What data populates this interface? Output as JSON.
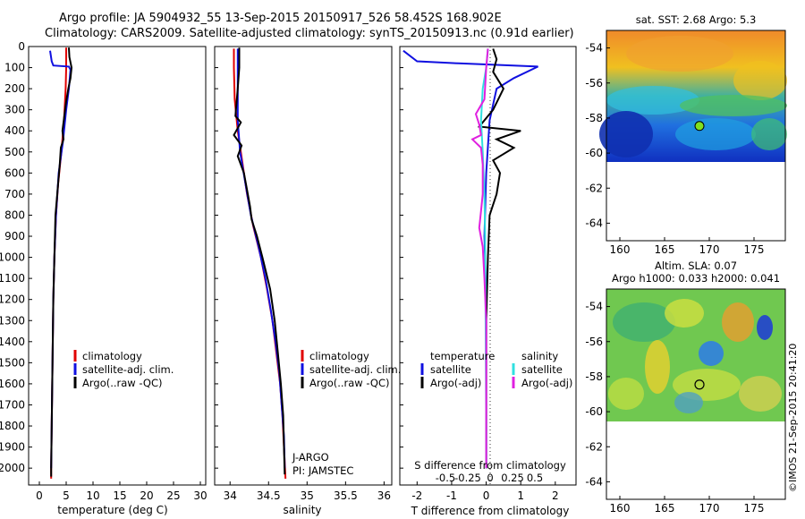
{
  "header": {
    "line1": "Argo profile: JA 5904932_55 13-Sep-2015 20150917_526 58.452S 168.902E",
    "line2": "Climatology: CARS2009. Satellite-adjusted climatology: synTS_20150913.nc (0.91d earlier)"
  },
  "side_stamp": "©IMOS 21-Sep-2015 20:41:20",
  "colors": {
    "climatology": "#e00000",
    "satellite": "#1010e0",
    "argo": "#000000",
    "cyan": "#30e0e0",
    "magenta": "#e020e0",
    "marker": "#80e020"
  },
  "chart_data": [
    {
      "type": "line",
      "id": "temperature",
      "xlabel": "temperature (deg C)",
      "ylabel": "",
      "xlim": [
        -2,
        31
      ],
      "ylim": [
        2080,
        0
      ],
      "xticks": [
        0,
        5,
        10,
        15,
        20,
        25,
        30
      ],
      "yticks": [
        0,
        100,
        200,
        300,
        400,
        500,
        600,
        700,
        800,
        900,
        1000,
        1100,
        1200,
        1300,
        1400,
        1500,
        1600,
        1700,
        1800,
        1900,
        2000
      ],
      "legend": [
        "climatology",
        "satellite-adj. clim.",
        "Argo(..raw -QC)"
      ],
      "series": [
        {
          "name": "climatology",
          "color": "#e00000",
          "points": [
            [
              5.0,
              5
            ],
            [
              5.0,
              100
            ],
            [
              4.9,
              200
            ],
            [
              4.6,
              350
            ],
            [
              4.1,
              500
            ],
            [
              3.5,
              650
            ],
            [
              3.1,
              800
            ],
            [
              2.8,
              1000
            ],
            [
              2.6,
              1200
            ],
            [
              2.5,
              1400
            ],
            [
              2.4,
              1600
            ],
            [
              2.3,
              1800
            ],
            [
              2.2,
              2000
            ],
            [
              2.2,
              2050
            ]
          ]
        },
        {
          "name": "satellite-adj. clim.",
          "color": "#1010e0",
          "points": [
            [
              2.0,
              20
            ],
            [
              2.3,
              70
            ],
            [
              2.6,
              90
            ],
            [
              5.5,
              95
            ],
            [
              5.8,
              110
            ],
            [
              5.5,
              200
            ],
            [
              5.0,
              300
            ],
            [
              4.4,
              450
            ],
            [
              3.6,
              600
            ],
            [
              3.1,
              800
            ],
            [
              2.8,
              1000
            ],
            [
              2.6,
              1200
            ],
            [
              2.5,
              1400
            ],
            [
              2.4,
              1600
            ],
            [
              2.3,
              1800
            ],
            [
              2.2,
              2000
            ]
          ]
        },
        {
          "name": "Argo(..raw -QC)",
          "color": "#000000",
          "points": [
            [
              5.5,
              5
            ],
            [
              5.6,
              50
            ],
            [
              6.0,
              100
            ],
            [
              5.8,
              150
            ],
            [
              5.4,
              200
            ],
            [
              5.0,
              260
            ],
            [
              4.6,
              340
            ],
            [
              4.3,
              400
            ],
            [
              4.5,
              440
            ],
            [
              4.0,
              480
            ],
            [
              3.8,
              560
            ],
            [
              3.4,
              680
            ],
            [
              3.0,
              800
            ],
            [
              2.8,
              1000
            ],
            [
              2.6,
              1200
            ],
            [
              2.5,
              1400
            ],
            [
              2.4,
              1600
            ],
            [
              2.3,
              1800
            ],
            [
              2.2,
              2000
            ],
            [
              2.2,
              2040
            ]
          ]
        }
      ]
    },
    {
      "type": "line",
      "id": "salinity",
      "xlabel": "salinity",
      "ylabel": "",
      "xlim": [
        33.8,
        36.1
      ],
      "ylim": [
        2080,
        0
      ],
      "xticks": [
        34,
        34.5,
        35,
        35.5,
        36
      ],
      "xticklabels": [
        "34",
        "34.5",
        "35",
        "35.5",
        "36"
      ],
      "legend": [
        "climatology",
        "satellite-adj. clim.",
        "Argo(..raw -QC)"
      ],
      "annotations": [
        "J-ARGO",
        "PI: JAMSTEC"
      ],
      "series": [
        {
          "name": "climatology",
          "color": "#e00000",
          "points": [
            [
              34.05,
              10
            ],
            [
              34.05,
              100
            ],
            [
              34.06,
              250
            ],
            [
              34.1,
              400
            ],
            [
              34.16,
              550
            ],
            [
              34.22,
              700
            ],
            [
              34.3,
              850
            ],
            [
              34.4,
              1000
            ],
            [
              34.48,
              1150
            ],
            [
              34.55,
              1300
            ],
            [
              34.6,
              1450
            ],
            [
              34.65,
              1600
            ],
            [
              34.68,
              1750
            ],
            [
              34.7,
              1900
            ],
            [
              34.72,
              2050
            ]
          ]
        },
        {
          "name": "satellite-adj. clim.",
          "color": "#1010e0",
          "points": [
            [
              34.1,
              10
            ],
            [
              34.1,
              200
            ],
            [
              34.1,
              350
            ],
            [
              34.13,
              500
            ],
            [
              34.2,
              650
            ],
            [
              34.27,
              800
            ],
            [
              34.37,
              950
            ],
            [
              34.46,
              1100
            ],
            [
              34.53,
              1250
            ],
            [
              34.59,
              1400
            ],
            [
              34.64,
              1550
            ],
            [
              34.67,
              1700
            ],
            [
              34.7,
              1850
            ],
            [
              34.71,
              2000
            ]
          ]
        },
        {
          "name": "Argo(..raw -QC)",
          "color": "#000000",
          "points": [
            [
              34.12,
              5
            ],
            [
              34.12,
              100
            ],
            [
              34.1,
              200
            ],
            [
              34.07,
              330
            ],
            [
              34.14,
              360
            ],
            [
              34.05,
              420
            ],
            [
              34.15,
              470
            ],
            [
              34.1,
              520
            ],
            [
              34.18,
              600
            ],
            [
              34.22,
              680
            ],
            [
              34.26,
              760
            ],
            [
              34.28,
              820
            ],
            [
              34.35,
              900
            ],
            [
              34.42,
              1000
            ],
            [
              34.52,
              1150
            ],
            [
              34.58,
              1300
            ],
            [
              34.62,
              1450
            ],
            [
              34.66,
              1600
            ],
            [
              34.69,
              1750
            ],
            [
              34.7,
              1900
            ],
            [
              34.71,
              2030
            ]
          ]
        }
      ]
    },
    {
      "type": "line",
      "id": "difference",
      "xlabel": "T difference from climatology",
      "x2label": "S difference from climatology",
      "ylabel": "",
      "xlim": [
        -2.5,
        2.6
      ],
      "ylim": [
        2080,
        0
      ],
      "xticks": [
        -2,
        -1,
        0,
        1,
        2
      ],
      "x2ticks": [
        -0.5,
        -0.25,
        0,
        0.25,
        0.5
      ],
      "x2ticklabels": [
        "-0.5",
        "-0.25",
        "0",
        "0.25",
        "0.5"
      ],
      "legend_headers": [
        "temperature",
        "salinity"
      ],
      "legend": [
        "satellite",
        "Argo(-adj)",
        "satellite",
        "Argo(-adj)"
      ],
      "series": [
        {
          "name": "temperature satellite",
          "color": "#1010e0",
          "points": [
            [
              -2.4,
              20
            ],
            [
              -2.0,
              70
            ],
            [
              -0.8,
              80
            ],
            [
              1.5,
              95
            ],
            [
              0.8,
              150
            ],
            [
              0.3,
              200
            ],
            [
              0.1,
              350
            ],
            [
              0.0,
              600
            ],
            [
              -0.05,
              900
            ],
            [
              0.0,
              1200
            ],
            [
              0.0,
              1600
            ],
            [
              0.0,
              2000
            ]
          ]
        },
        {
          "name": "temperature Argo(-adj)",
          "color": "#000000",
          "points": [
            [
              0.2,
              10
            ],
            [
              0.3,
              60
            ],
            [
              0.2,
              120
            ],
            [
              0.5,
              200
            ],
            [
              0.2,
              300
            ],
            [
              -0.2,
              380
            ],
            [
              1.0,
              400
            ],
            [
              0.3,
              440
            ],
            [
              0.8,
              480
            ],
            [
              0.2,
              540
            ],
            [
              0.4,
              600
            ],
            [
              0.3,
              700
            ],
            [
              0.1,
              800
            ],
            [
              0.05,
              1000
            ],
            [
              0.0,
              1300
            ],
            [
              0.0,
              1600
            ],
            [
              0.0,
              2000
            ]
          ]
        },
        {
          "name": "salinity satellite",
          "color": "#30e0e0",
          "points": [
            [
              0.05,
              10
            ],
            [
              0.0,
              100
            ],
            [
              -0.1,
              200
            ],
            [
              -0.15,
              350
            ],
            [
              -0.1,
              500
            ],
            [
              -0.05,
              700
            ],
            [
              -0.03,
              900
            ],
            [
              -0.02,
              1200
            ],
            [
              -0.01,
              1500
            ],
            [
              0.0,
              1800
            ],
            [
              0.0,
              2000
            ]
          ]
        },
        {
          "name": "salinity Argo(-adj)",
          "color": "#e020e0",
          "points": [
            [
              0.05,
              10
            ],
            [
              0.0,
              100
            ],
            [
              -0.05,
              250
            ],
            [
              -0.3,
              320
            ],
            [
              -0.2,
              370
            ],
            [
              -0.15,
              420
            ],
            [
              -0.4,
              440
            ],
            [
              -0.15,
              480
            ],
            [
              -0.1,
              560
            ],
            [
              -0.1,
              700
            ],
            [
              -0.15,
              780
            ],
            [
              -0.2,
              860
            ],
            [
              -0.1,
              950
            ],
            [
              -0.05,
              1100
            ],
            [
              0.0,
              1300
            ],
            [
              0.0,
              1600
            ],
            [
              0.0,
              2000
            ]
          ]
        }
      ]
    },
    {
      "type": "heatmap",
      "id": "sst-map",
      "title": "sat. SST: 2.68 Argo: 5.3",
      "xlim": [
        158.5,
        178.5
      ],
      "ylim": [
        -65,
        -53
      ],
      "xticks": [
        160,
        165,
        170,
        175
      ],
      "yticks": [
        -54,
        -56,
        -58,
        -60,
        -62,
        -64
      ],
      "data_rows_lat": [
        -53,
        -60
      ],
      "argo_position": [
        168.902,
        -58.452
      ]
    },
    {
      "type": "heatmap",
      "id": "sla-map",
      "title_line1": "Altim. SLA: 0.07",
      "title_line2": "Argo h1000: 0.033 h2000: 0.041",
      "xlim": [
        158.5,
        178.5
      ],
      "ylim": [
        -65,
        -53
      ],
      "xticks": [
        160,
        165,
        170,
        175
      ],
      "yticks": [
        -54,
        -56,
        -58,
        -60,
        -62,
        -64
      ],
      "data_rows_lat": [
        -53,
        -60
      ],
      "argo_position": [
        168.902,
        -58.452
      ]
    }
  ]
}
